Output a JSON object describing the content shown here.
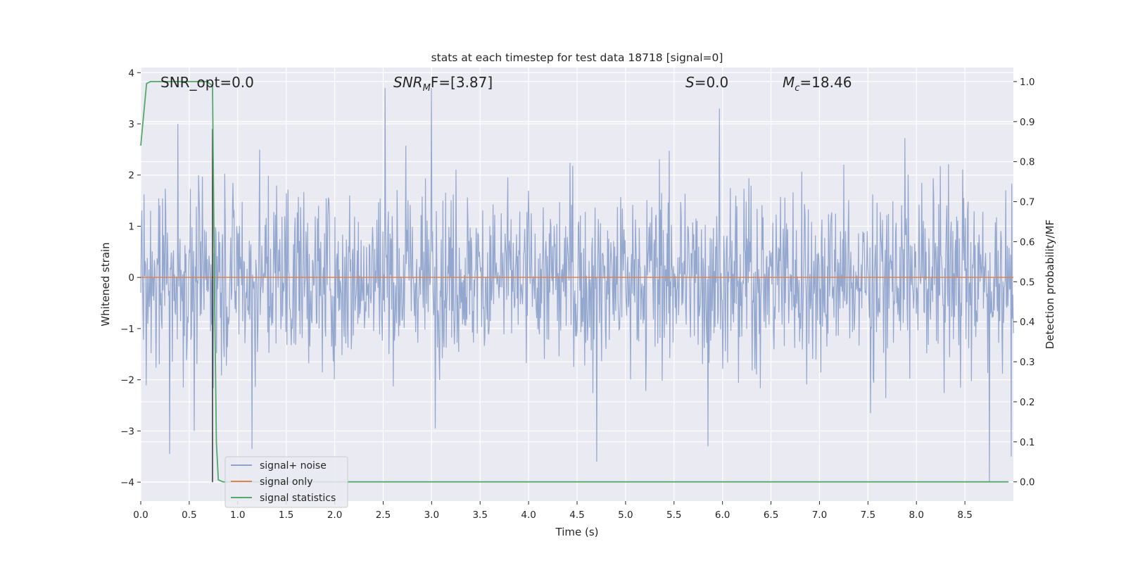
{
  "chart_data": {
    "type": "line",
    "title": "stats at each timestep for test data 18718 [signal=0]",
    "xlabel": "Time (s)",
    "ylabel_left": "Whitened strain",
    "ylabel_right": "Detection probability/MF",
    "xlim": [
      0.0,
      9.0
    ],
    "ylim_left": [
      -4.37,
      4.1
    ],
    "ylim_right": [
      -0.048,
      1.035
    ],
    "x_ticks": [
      "0.0",
      "0.5",
      "1.0",
      "1.5",
      "2.0",
      "2.5",
      "3.0",
      "3.5",
      "4.0",
      "4.5",
      "5.0",
      "5.5",
      "6.0",
      "6.5",
      "7.0",
      "7.5",
      "8.0",
      "8.5"
    ],
    "y_left_ticks": [
      "4",
      "3",
      "2",
      "1",
      "0",
      "−1",
      "−2",
      "−3",
      "−4"
    ],
    "y_right_ticks": [
      "1.0",
      "0.9",
      "0.8",
      "0.7",
      "0.6",
      "0.5",
      "0.4",
      "0.3",
      "0.2",
      "0.1",
      "0.0"
    ],
    "grid": true,
    "annotations": {
      "snr_opt": "SNR_opt=0.0",
      "snr_mf_base": "SNR",
      "snr_mf_sub": "M",
      "snr_mf_rest": "F=[3.87]",
      "s_label": "S",
      "s_rest": "=0.0",
      "mc_base": "M",
      "mc_sub": "c",
      "mc_rest": "=18.46"
    },
    "legend": {
      "placement": "lower-left",
      "entries": [
        {
          "label": "signal+ noise",
          "color": "#8fa3cc"
        },
        {
          "label": "signal only",
          "color": "#dd8452"
        },
        {
          "label": "signal statistics",
          "color": "#55a868"
        }
      ]
    },
    "series": [
      {
        "name": "signal+ noise",
        "axis": "left",
        "color": "#8fa3cc",
        "style": "dense noise",
        "typical_range": [
          -2.0,
          2.0
        ],
        "notable_peaks": [
          {
            "x": 0.3,
            "y": -3.45
          },
          {
            "x": 0.38,
            "y": 3.0
          },
          {
            "x": 0.55,
            "y": -3.0
          },
          {
            "x": 1.15,
            "y": -3.35
          },
          {
            "x": 2.52,
            "y": 3.7
          },
          {
            "x": 3.0,
            "y": 3.7
          },
          {
            "x": 4.7,
            "y": -3.6
          },
          {
            "x": 5.85,
            "y": -3.3
          },
          {
            "x": 5.97,
            "y": 3.3
          },
          {
            "x": 8.75,
            "y": -4.0
          },
          {
            "x": 8.98,
            "y": -3.5
          }
        ]
      },
      {
        "name": "signal only",
        "axis": "left",
        "color": "#dd8452",
        "x": [
          0.0,
          9.0
        ],
        "y": [
          0.0,
          0.0
        ]
      },
      {
        "name": "signal statistics",
        "axis": "right",
        "color": "#55a868",
        "x": [
          0.0,
          0.06,
          0.1,
          0.2,
          0.4,
          0.6,
          0.68,
          0.74,
          0.76,
          0.78,
          0.8,
          0.85,
          1.0,
          2.0,
          4.0,
          6.0,
          8.0,
          8.95
        ],
        "y": [
          0.84,
          0.995,
          1.0,
          1.0,
          1.0,
          1.0,
          1.0,
          0.99,
          0.5,
          0.1,
          0.005,
          0.0,
          0.0,
          0.0,
          0.0,
          0.0,
          0.0,
          0.0
        ]
      },
      {
        "name": "",
        "axis": "left",
        "color": "#333333",
        "x": [
          0.74,
          0.74
        ],
        "y": [
          -4.0,
          2.9
        ]
      }
    ]
  }
}
